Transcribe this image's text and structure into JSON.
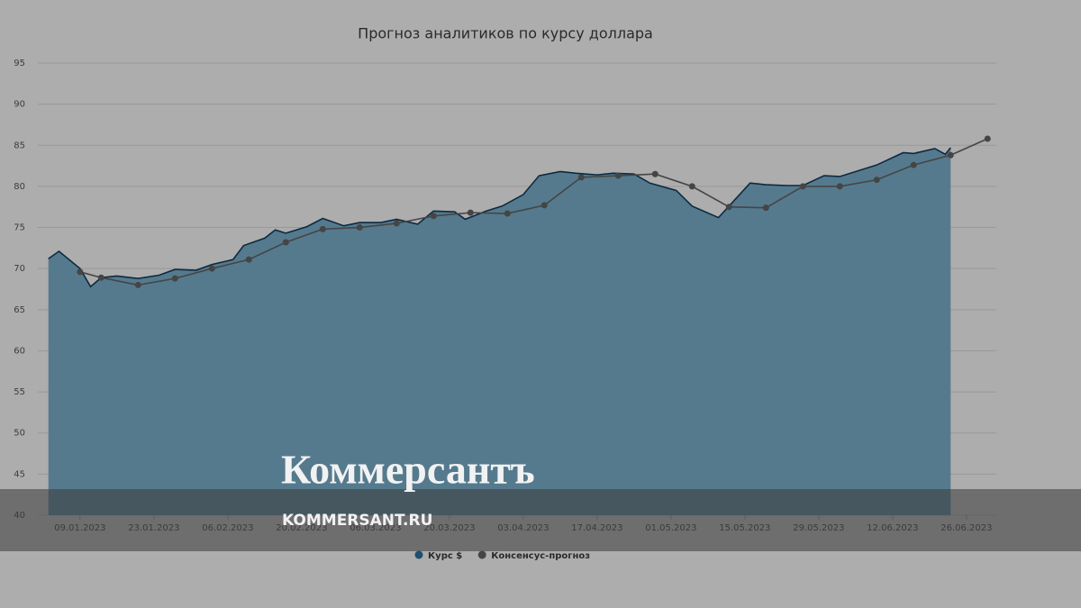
{
  "chart_data": {
    "type": "area-line",
    "title": "Прогноз аналитиков по курсу доллара",
    "ylim": [
      40,
      95
    ],
    "yticks": [
      40,
      45,
      50,
      55,
      60,
      65,
      70,
      75,
      80,
      85,
      90,
      95
    ],
    "grid": true,
    "xlim": [
      "01.01.2023",
      "02.07.2023"
    ],
    "xticks": [
      "09.01.2023",
      "23.01.2023",
      "06.02.2023",
      "20.02.2023",
      "06.03.2023",
      "20.03.2023",
      "03.04.2023",
      "17.04.2023",
      "01.05.2023",
      "15.05.2023",
      "29.05.2023",
      "12.06.2023",
      "26.06.2023"
    ],
    "legend": "bottom",
    "series": [
      {
        "name": "Курс $",
        "color": "#557a8e",
        "line_color": "#0d2a40",
        "legend_color": "#1f4e6e",
        "style": "area",
        "x": [
          "03.01.2023",
          "05.01.2023",
          "09.01.2023",
          "11.01.2023",
          "13.01.2023",
          "16.01.2023",
          "20.01.2023",
          "24.01.2023",
          "27.01.2023",
          "31.01.2023",
          "03.02.2023",
          "07.02.2023",
          "09.02.2023",
          "13.02.2023",
          "15.02.2023",
          "17.02.2023",
          "21.02.2023",
          "24.02.2023",
          "28.02.2023",
          "03.03.2023",
          "07.03.2023",
          "10.03.2023",
          "14.03.2023",
          "17.03.2023",
          "21.03.2023",
          "23.03.2023",
          "27.03.2023",
          "30.03.2023",
          "03.04.2023",
          "06.04.2023",
          "10.04.2023",
          "13.04.2023",
          "17.04.2023",
          "20.04.2023",
          "24.04.2023",
          "27.04.2023",
          "02.05.2023",
          "05.05.2023",
          "10.05.2023",
          "12.05.2023",
          "16.05.2023",
          "19.05.2023",
          "23.05.2023",
          "26.05.2023",
          "30.05.2023",
          "02.06.2023",
          "06.06.2023",
          "09.06.2023",
          "14.06.2023",
          "16.06.2023",
          "20.06.2023",
          "22.06.2023",
          "23.06.2023"
        ],
        "values": [
          71.2,
          72.1,
          70.0,
          67.8,
          68.9,
          69.1,
          68.8,
          69.2,
          69.9,
          69.8,
          70.5,
          71.1,
          72.8,
          73.7,
          74.7,
          74.3,
          75.1,
          76.1,
          75.2,
          75.6,
          75.6,
          76.0,
          75.4,
          77.0,
          76.9,
          76.0,
          77.0,
          77.6,
          79.0,
          81.3,
          81.8,
          81.6,
          81.4,
          81.6,
          81.5,
          80.4,
          79.5,
          77.6,
          76.2,
          77.6,
          80.4,
          80.2,
          80.1,
          80.1,
          81.3,
          81.2,
          82.0,
          82.6,
          84.1,
          84.0,
          84.6,
          83.9,
          84.7
        ]
      },
      {
        "name": "Консенсус-прогноз",
        "color": "#454545",
        "style": "line-markers",
        "x": [
          "09.01.2023",
          "13.01.2023",
          "20.01.2023",
          "27.01.2023",
          "03.02.2023",
          "10.02.2023",
          "17.02.2023",
          "24.02.2023",
          "03.03.2023",
          "10.03.2023",
          "17.03.2023",
          "24.03.2023",
          "31.03.2023",
          "07.04.2023",
          "14.04.2023",
          "21.04.2023",
          "28.04.2023",
          "05.05.2023",
          "12.05.2023",
          "19.05.2023",
          "26.05.2023",
          "02.06.2023",
          "09.06.2023",
          "16.06.2023",
          "23.06.2023",
          "30.06.2023"
        ],
        "values": [
          69.6,
          68.9,
          68.0,
          68.8,
          70.0,
          71.1,
          73.2,
          74.8,
          75.0,
          75.5,
          76.4,
          76.8,
          76.7,
          77.7,
          81.1,
          81.3,
          81.5,
          80.0,
          77.5,
          77.4,
          80.0,
          80.0,
          80.8,
          82.6,
          83.8,
          85.8
        ]
      }
    ]
  },
  "watermark": {
    "logo": "Коммерсантъ",
    "url": "KOMMERSANT.RU"
  }
}
